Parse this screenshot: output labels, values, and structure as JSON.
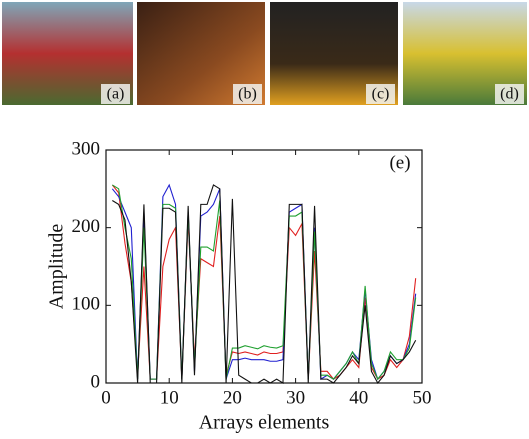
{
  "panels": [
    "(a)",
    "(b)",
    "(c)",
    "(d)"
  ],
  "chart_data": {
    "type": "line",
    "annotation": "(e)",
    "xlabel": "Arrays elements",
    "ylabel": "Amplitude",
    "xlim": [
      0,
      50
    ],
    "ylim": [
      0,
      300
    ],
    "xticks": [
      0,
      10,
      20,
      30,
      40,
      50
    ],
    "yticks": [
      0,
      100,
      200,
      300
    ],
    "x": [
      1,
      2,
      3,
      4,
      5,
      6,
      7,
      8,
      9,
      10,
      11,
      12,
      13,
      14,
      15,
      16,
      17,
      18,
      19,
      20,
      21,
      22,
      23,
      24,
      25,
      26,
      27,
      28,
      29,
      30,
      31,
      32,
      33,
      34,
      35,
      36,
      37,
      38,
      39,
      40,
      41,
      42,
      43,
      44,
      45,
      46,
      47,
      48,
      49
    ],
    "series": [
      {
        "color": "#e02020",
        "values": [
          255,
          245,
          180,
          130,
          10,
          150,
          5,
          5,
          150,
          185,
          200,
          5,
          210,
          30,
          160,
          155,
          150,
          215,
          10,
          40,
          38,
          40,
          38,
          36,
          40,
          38,
          38,
          40,
          200,
          190,
          205,
          5,
          170,
          15,
          15,
          5,
          10,
          20,
          30,
          20,
          110,
          20,
          5,
          10,
          30,
          20,
          30,
          60,
          135
        ]
      },
      {
        "color": "#2020d0",
        "values": [
          250,
          240,
          220,
          200,
          5,
          220,
          5,
          5,
          240,
          255,
          230,
          5,
          220,
          15,
          215,
          220,
          230,
          250,
          5,
          30,
          30,
          32,
          30,
          30,
          30,
          28,
          28,
          30,
          220,
          225,
          230,
          5,
          200,
          5,
          10,
          5,
          15,
          25,
          40,
          30,
          120,
          30,
          5,
          15,
          35,
          25,
          30,
          50,
          115
        ]
      },
      {
        "color": "#20a030",
        "values": [
          255,
          250,
          200,
          160,
          5,
          200,
          5,
          5,
          230,
          230,
          225,
          5,
          220,
          20,
          175,
          175,
          170,
          235,
          5,
          45,
          45,
          48,
          46,
          44,
          48,
          46,
          45,
          48,
          215,
          215,
          220,
          5,
          195,
          10,
          10,
          5,
          15,
          25,
          40,
          25,
          125,
          25,
          5,
          15,
          40,
          30,
          30,
          45,
          110
        ]
      },
      {
        "color": "#111111",
        "values": [
          235,
          230,
          210,
          130,
          0,
          230,
          0,
          0,
          225,
          225,
          220,
          0,
          228,
          10,
          230,
          230,
          255,
          250,
          0,
          237,
          10,
          5,
          0,
          0,
          5,
          0,
          5,
          0,
          230,
          230,
          230,
          0,
          228,
          5,
          5,
          0,
          10,
          20,
          35,
          25,
          100,
          15,
          0,
          10,
          35,
          25,
          30,
          40,
          55
        ]
      }
    ]
  }
}
